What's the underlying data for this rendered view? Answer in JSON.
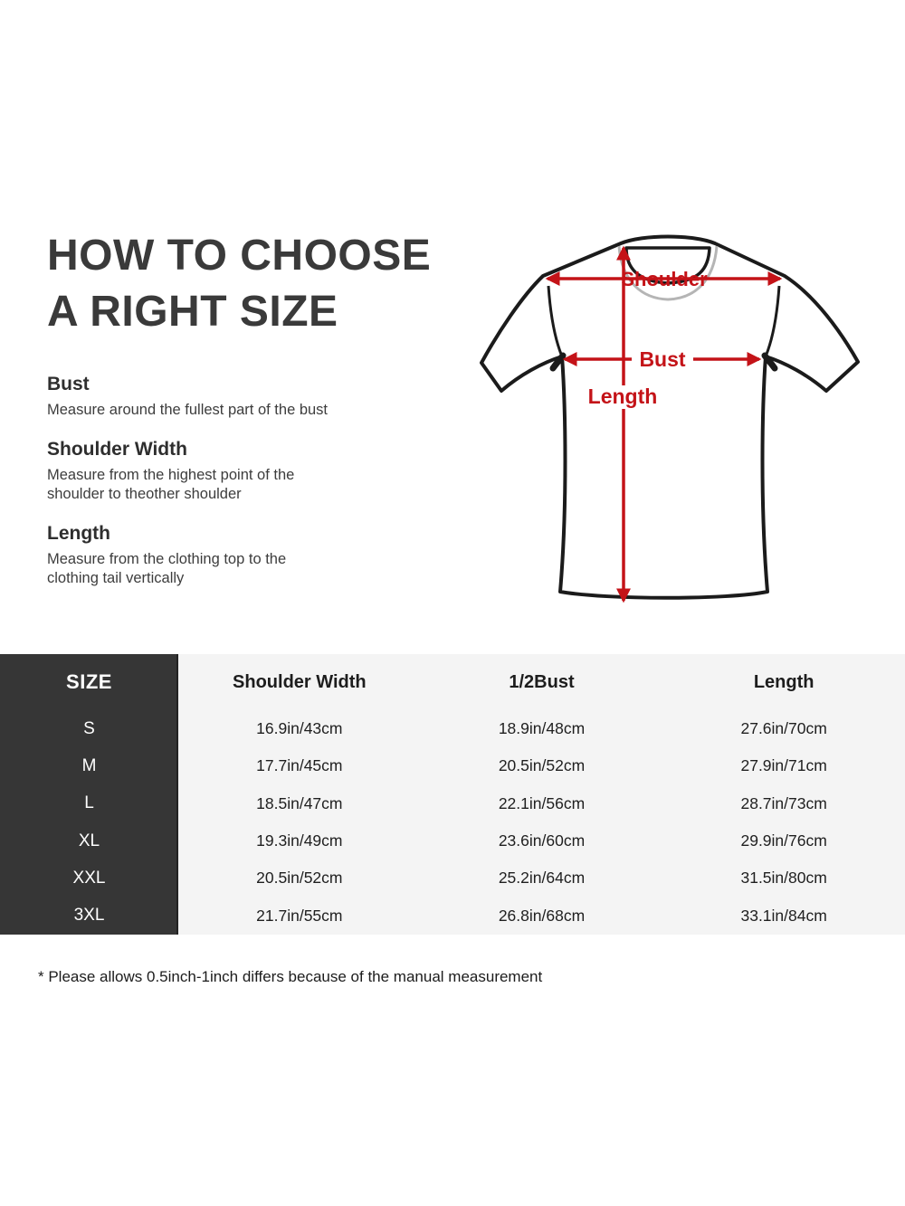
{
  "guide": {
    "title_line1": "HOW TO CHOOSE",
    "title_line2": "A RIGHT SIZE",
    "sections": [
      {
        "heading": "Bust",
        "body": "Measure around the fullest part of the bust"
      },
      {
        "heading": "Shoulder Width",
        "body": "Measure from the highest point of the\nshoulder to theother shoulder"
      },
      {
        "heading": "Length",
        "body": "Measure from the clothing top to the\nclothing tail vertically"
      }
    ]
  },
  "diagram": {
    "labels": {
      "shoulder": "Shoulder",
      "bust": "Bust",
      "length": "Length"
    },
    "arrow_color": "#c41318",
    "outline_color": "#1b1b1b",
    "collar_shadow_color": "#b5b5b5"
  },
  "size_table": {
    "header": [
      "SIZE",
      "Shoulder Width",
      "1/2Bust",
      "Length"
    ],
    "rows": [
      {
        "size": "S",
        "shoulder": "16.9in/43cm",
        "bust": "18.9in/48cm",
        "length": "27.6in/70cm"
      },
      {
        "size": "M",
        "shoulder": "17.7in/45cm",
        "bust": "20.5in/52cm",
        "length": "27.9in/71cm"
      },
      {
        "size": "L",
        "shoulder": "18.5in/47cm",
        "bust": "22.1in/56cm",
        "length": "28.7in/73cm"
      },
      {
        "size": "XL",
        "shoulder": "19.3in/49cm",
        "bust": "23.6in/60cm",
        "length": "29.9in/76cm"
      },
      {
        "size": "XXL",
        "shoulder": "20.5in/52cm",
        "bust": "25.2in/64cm",
        "length": "31.5in/80cm"
      },
      {
        "size": "3XL",
        "shoulder": "21.7in/55cm",
        "bust": "26.8in/68cm",
        "length": "33.1in/84cm"
      }
    ],
    "colors": {
      "header_bg": "#363636",
      "header_text": "#ffffff",
      "body_bg": "#f4f4f4",
      "divider": "#232323"
    }
  },
  "footnote": "* Please allows 0.5inch-1inch differs because of the  manual measurement"
}
